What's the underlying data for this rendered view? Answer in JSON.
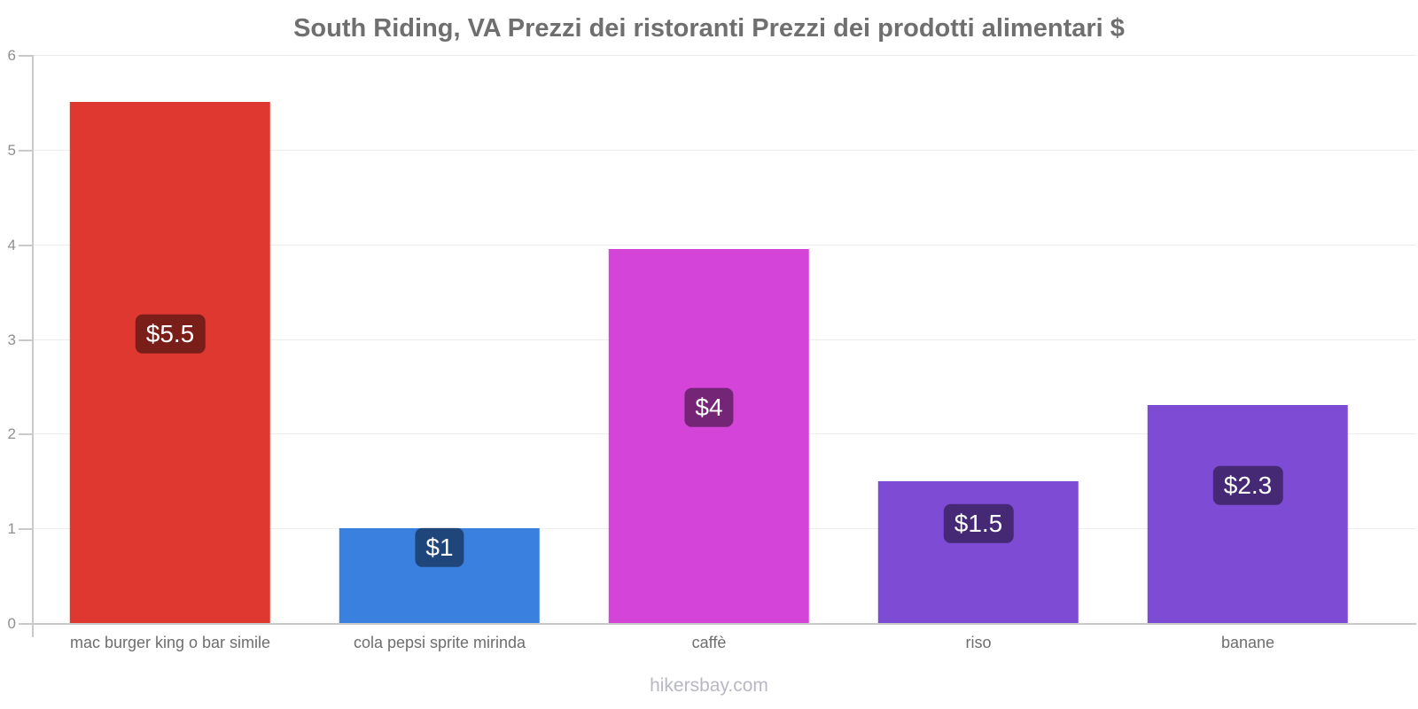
{
  "title": "South Riding, VA Prezzi dei ristoranti Prezzi dei prodotti alimentari $",
  "footer": {
    "watermark": "hikersbay.com"
  },
  "chart_data": {
    "type": "bar",
    "title": "South Riding, VA Prezzi dei ristoranti Prezzi dei prodotti alimentari $",
    "xlabel": "",
    "ylabel": "",
    "ylim": [
      0,
      6
    ],
    "y_ticks": [
      0,
      1,
      2,
      3,
      4,
      5,
      6
    ],
    "grid": true,
    "legend": false,
    "currency": "$",
    "categories": [
      "mac burger king o bar simile",
      "cola pepsi sprite mirinda",
      "caffè",
      "riso",
      "banane"
    ],
    "values": [
      5.5,
      1,
      3.95,
      1.5,
      2.3
    ],
    "value_labels": [
      "$5.5",
      "$1",
      "$4",
      "$1.5",
      "$2.3"
    ],
    "bar_colors": [
      "#de3831",
      "#3a80de",
      "#d444d8",
      "#7e4bd5",
      "#7e4bd5"
    ],
    "label_overlay_color": "rgba(0,0,0,0.45)",
    "axis_color": "#c9c9c9",
    "gridline_color": "#ededed",
    "title_color": "#6f6f6f",
    "tick_label_color": "#8f8f8f",
    "category_label_color": "#6e6e6e",
    "watermark_color": "#b8b8c5"
  }
}
